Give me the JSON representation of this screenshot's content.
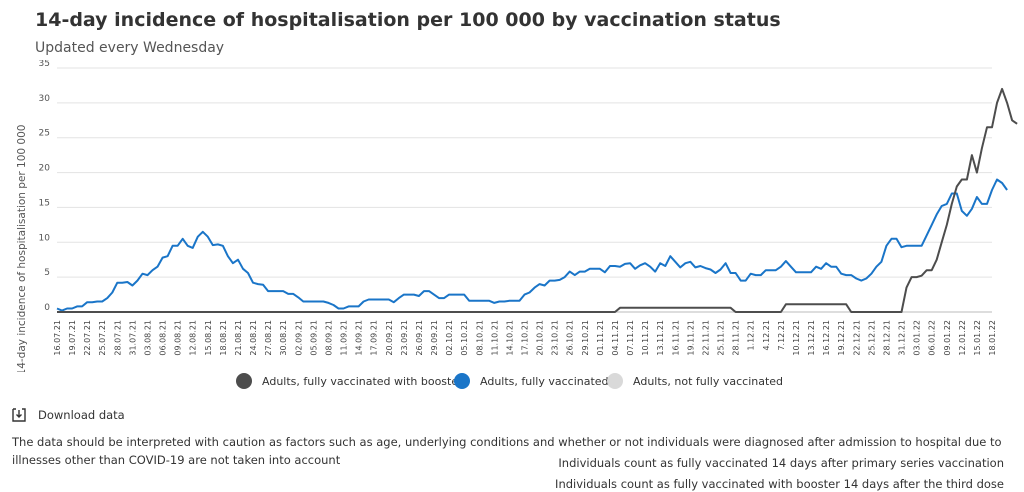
{
  "header": {
    "title": "14-day incidence of hospitalisation per 100 000 by vaccination status",
    "subtitle": "Updated every Wednesday"
  },
  "download": {
    "label": "Download data"
  },
  "notes": {
    "caution": "The data should be interpreted with caution as factors such as age, underlying conditions and whether or not individuals were diagnosed after admission to hospital due to illnesses other than COVID-19 are not taken into account",
    "primary": "Individuals count as fully vaccinated 14 days after primary series vaccination",
    "booster": "Individuals count as fully vaccinated with booster 14 days after the third dose"
  },
  "chart_data": {
    "type": "line",
    "ylabel": "14-day incidence of hospitalisation per 100 000",
    "ylim": [
      0,
      35
    ],
    "yticks": [
      0,
      5,
      10,
      15,
      20,
      25,
      30,
      35
    ],
    "grid": "horizontal",
    "legend_position": "bottom",
    "x_tick_labels": [
      "16.07.21",
      "19.07.21",
      "22.07.21",
      "25.07.21",
      "28.07.21",
      "31.07.21",
      "03.08.21",
      "06.08.21",
      "09.08.21",
      "12.08.21",
      "15.08.21",
      "18.08.21",
      "21.08.21",
      "24.08.21",
      "27.08.21",
      "30.08.21",
      "02.09.21",
      "05.09.21",
      "08.09.21",
      "11.09.21",
      "14.09.21",
      "17.09.21",
      "20.09.21",
      "23.09.21",
      "26.09.21",
      "29.09.21",
      "02.10.21",
      "05.10.21",
      "08.10.21",
      "11.10.21",
      "14.10.21",
      "17.10.21",
      "20.10.21",
      "23.10.21",
      "26.10.21",
      "29.10.21",
      "01.11.21",
      "04.11.21",
      "07.11.21",
      "10.11.21",
      "13.11.21",
      "16.11.21",
      "19.11.21",
      "22.11.21",
      "25.11.21",
      "28.11.21",
      "1.12.21",
      "4.12.21",
      "7.12.21",
      "10.12.21",
      "13.12.21",
      "16.12.21",
      "19.12.21",
      "22.12.21",
      "25.12.21",
      "28.12.21",
      "31.12.21",
      "03.01.22",
      "06.01.22",
      "09.01.22",
      "12.01.22",
      "15.01.22",
      "18.01.22"
    ],
    "series": [
      {
        "name": "Adults, fully vaccinated with booster",
        "color": "#4d4d4d",
        "points": [
          [
            0,
            0
          ],
          [
            111,
            0
          ],
          [
            112,
            0.6
          ],
          [
            134,
            0.6
          ],
          [
            135,
            0
          ],
          [
            144,
            0
          ],
          [
            145,
            1.1
          ],
          [
            157,
            1.1
          ],
          [
            158,
            0
          ],
          [
            168,
            0
          ],
          [
            169,
            3.5
          ],
          [
            170,
            5
          ],
          [
            171,
            5
          ],
          [
            172,
            5.2
          ],
          [
            173,
            6
          ],
          [
            174,
            6
          ],
          [
            175,
            7.5
          ],
          [
            176,
            10
          ],
          [
            177,
            12.5
          ],
          [
            178,
            15.5
          ],
          [
            179,
            18
          ],
          [
            180,
            19
          ],
          [
            181,
            19
          ],
          [
            182,
            22.5
          ],
          [
            183,
            20
          ],
          [
            184,
            23.5
          ],
          [
            185,
            26.5
          ],
          [
            186,
            26.5
          ],
          [
            187,
            30
          ],
          [
            188,
            32
          ],
          [
            189,
            30
          ],
          [
            190,
            27.5
          ],
          [
            191,
            27
          ]
        ]
      },
      {
        "name": "Adults, fully vaccinated",
        "color": "#1a75c8",
        "points": [
          [
            0,
            0.5
          ],
          [
            1,
            0.2
          ],
          [
            2,
            0.5
          ],
          [
            3,
            0.5
          ],
          [
            4,
            0.8
          ],
          [
            5,
            0.8
          ],
          [
            6,
            1.4
          ],
          [
            7,
            1.4
          ],
          [
            8,
            1.5
          ],
          [
            9,
            1.5
          ],
          [
            10,
            2
          ],
          [
            11,
            2.8
          ],
          [
            12,
            4.2
          ],
          [
            13,
            4.2
          ],
          [
            14,
            4.3
          ],
          [
            15,
            3.8
          ],
          [
            16,
            4.5
          ],
          [
            17,
            5.5
          ],
          [
            18,
            5.3
          ],
          [
            19,
            6
          ],
          [
            20,
            6.5
          ],
          [
            21,
            7.8
          ],
          [
            22,
            8
          ],
          [
            23,
            9.5
          ],
          [
            24,
            9.5
          ],
          [
            25,
            10.5
          ],
          [
            26,
            9.5
          ],
          [
            27,
            9.2
          ],
          [
            28,
            10.8
          ],
          [
            29,
            11.5
          ],
          [
            30,
            10.8
          ],
          [
            31,
            9.6
          ],
          [
            32,
            9.7
          ],
          [
            33,
            9.5
          ],
          [
            34,
            8
          ],
          [
            35,
            7
          ],
          [
            36,
            7.5
          ],
          [
            37,
            6.2
          ],
          [
            38,
            5.6
          ],
          [
            39,
            4.2
          ],
          [
            40,
            4
          ],
          [
            41,
            3.9
          ],
          [
            42,
            3
          ],
          [
            43,
            3
          ],
          [
            44,
            3
          ],
          [
            45,
            3
          ],
          [
            46,
            2.6
          ],
          [
            47,
            2.6
          ],
          [
            48,
            2.1
          ],
          [
            49,
            1.5
          ],
          [
            50,
            1.5
          ],
          [
            51,
            1.5
          ],
          [
            52,
            1.5
          ],
          [
            53,
            1.5
          ],
          [
            54,
            1.3
          ],
          [
            55,
            1
          ],
          [
            56,
            0.5
          ],
          [
            57,
            0.5
          ],
          [
            58,
            0.8
          ],
          [
            59,
            0.8
          ],
          [
            60,
            0.8
          ],
          [
            61,
            1.5
          ],
          [
            62,
            1.8
          ],
          [
            63,
            1.8
          ],
          [
            64,
            1.8
          ],
          [
            65,
            1.8
          ],
          [
            66,
            1.8
          ],
          [
            67,
            1.4
          ],
          [
            68,
            2
          ],
          [
            69,
            2.5
          ],
          [
            70,
            2.5
          ],
          [
            71,
            2.5
          ],
          [
            72,
            2.3
          ],
          [
            73,
            3
          ],
          [
            74,
            3
          ],
          [
            75,
            2.5
          ],
          [
            76,
            2
          ],
          [
            77,
            2
          ],
          [
            78,
            2.5
          ],
          [
            79,
            2.5
          ],
          [
            80,
            2.5
          ],
          [
            81,
            2.5
          ],
          [
            82,
            1.6
          ],
          [
            83,
            1.6
          ],
          [
            84,
            1.6
          ],
          [
            85,
            1.6
          ],
          [
            86,
            1.6
          ],
          [
            87,
            1.3
          ],
          [
            88,
            1.5
          ],
          [
            89,
            1.5
          ],
          [
            90,
            1.6
          ],
          [
            91,
            1.6
          ],
          [
            92,
            1.6
          ],
          [
            93,
            2.5
          ],
          [
            94,
            2.8
          ],
          [
            95,
            3.5
          ],
          [
            96,
            4
          ],
          [
            97,
            3.8
          ],
          [
            98,
            4.5
          ],
          [
            99,
            4.5
          ],
          [
            100,
            4.6
          ],
          [
            101,
            5
          ],
          [
            102,
            5.8
          ],
          [
            103,
            5.3
          ],
          [
            104,
            5.8
          ],
          [
            105,
            5.8
          ],
          [
            106,
            6.2
          ],
          [
            107,
            6.2
          ],
          [
            108,
            6.2
          ],
          [
            109,
            5.7
          ],
          [
            110,
            6.6
          ],
          [
            111,
            6.6
          ],
          [
            112,
            6.5
          ],
          [
            113,
            6.9
          ],
          [
            114,
            7
          ],
          [
            115,
            6.2
          ],
          [
            116,
            6.7
          ],
          [
            117,
            7
          ],
          [
            118,
            6.5
          ],
          [
            119,
            5.8
          ],
          [
            120,
            7
          ],
          [
            121,
            6.6
          ],
          [
            122,
            8
          ],
          [
            123,
            7.2
          ],
          [
            124,
            6.4
          ],
          [
            125,
            7
          ],
          [
            126,
            7.2
          ],
          [
            127,
            6.4
          ],
          [
            128,
            6.6
          ],
          [
            129,
            6.3
          ],
          [
            130,
            6.1
          ],
          [
            131,
            5.6
          ],
          [
            132,
            6.1
          ],
          [
            133,
            7
          ],
          [
            134,
            5.6
          ],
          [
            135,
            5.6
          ],
          [
            136,
            4.5
          ],
          [
            137,
            4.5
          ],
          [
            138,
            5.5
          ],
          [
            139,
            5.3
          ],
          [
            140,
            5.3
          ],
          [
            141,
            6
          ],
          [
            142,
            6
          ],
          [
            143,
            6
          ],
          [
            144,
            6.5
          ],
          [
            145,
            7.3
          ],
          [
            146,
            6.5
          ],
          [
            147,
            5.7
          ],
          [
            148,
            5.7
          ],
          [
            149,
            5.7
          ],
          [
            150,
            5.7
          ],
          [
            151,
            6.5
          ],
          [
            152,
            6.2
          ],
          [
            153,
            7
          ],
          [
            154,
            6.5
          ],
          [
            155,
            6.5
          ],
          [
            156,
            5.5
          ],
          [
            157,
            5.3
          ],
          [
            158,
            5.3
          ],
          [
            159,
            4.8
          ],
          [
            160,
            4.5
          ],
          [
            161,
            4.8
          ],
          [
            162,
            5.5
          ],
          [
            163,
            6.5
          ],
          [
            164,
            7.2
          ],
          [
            165,
            9.5
          ],
          [
            166,
            10.5
          ],
          [
            167,
            10.5
          ],
          [
            168,
            9.3
          ],
          [
            169,
            9.5
          ],
          [
            170,
            9.5
          ],
          [
            171,
            9.5
          ],
          [
            172,
            9.5
          ],
          [
            173,
            11
          ],
          [
            174,
            12.5
          ],
          [
            175,
            14
          ],
          [
            176,
            15.2
          ],
          [
            177,
            15.5
          ],
          [
            178,
            17
          ],
          [
            179,
            17
          ],
          [
            180,
            14.5
          ],
          [
            181,
            13.8
          ],
          [
            182,
            14.8
          ],
          [
            183,
            16.5
          ],
          [
            184,
            15.5
          ],
          [
            185,
            15.5
          ],
          [
            186,
            17.5
          ],
          [
            187,
            19
          ],
          [
            188,
            18.5
          ],
          [
            189,
            17.5
          ]
        ]
      },
      {
        "name": "Adults, not fully vaccinated",
        "color": "#d9d9d9",
        "points": []
      }
    ]
  }
}
